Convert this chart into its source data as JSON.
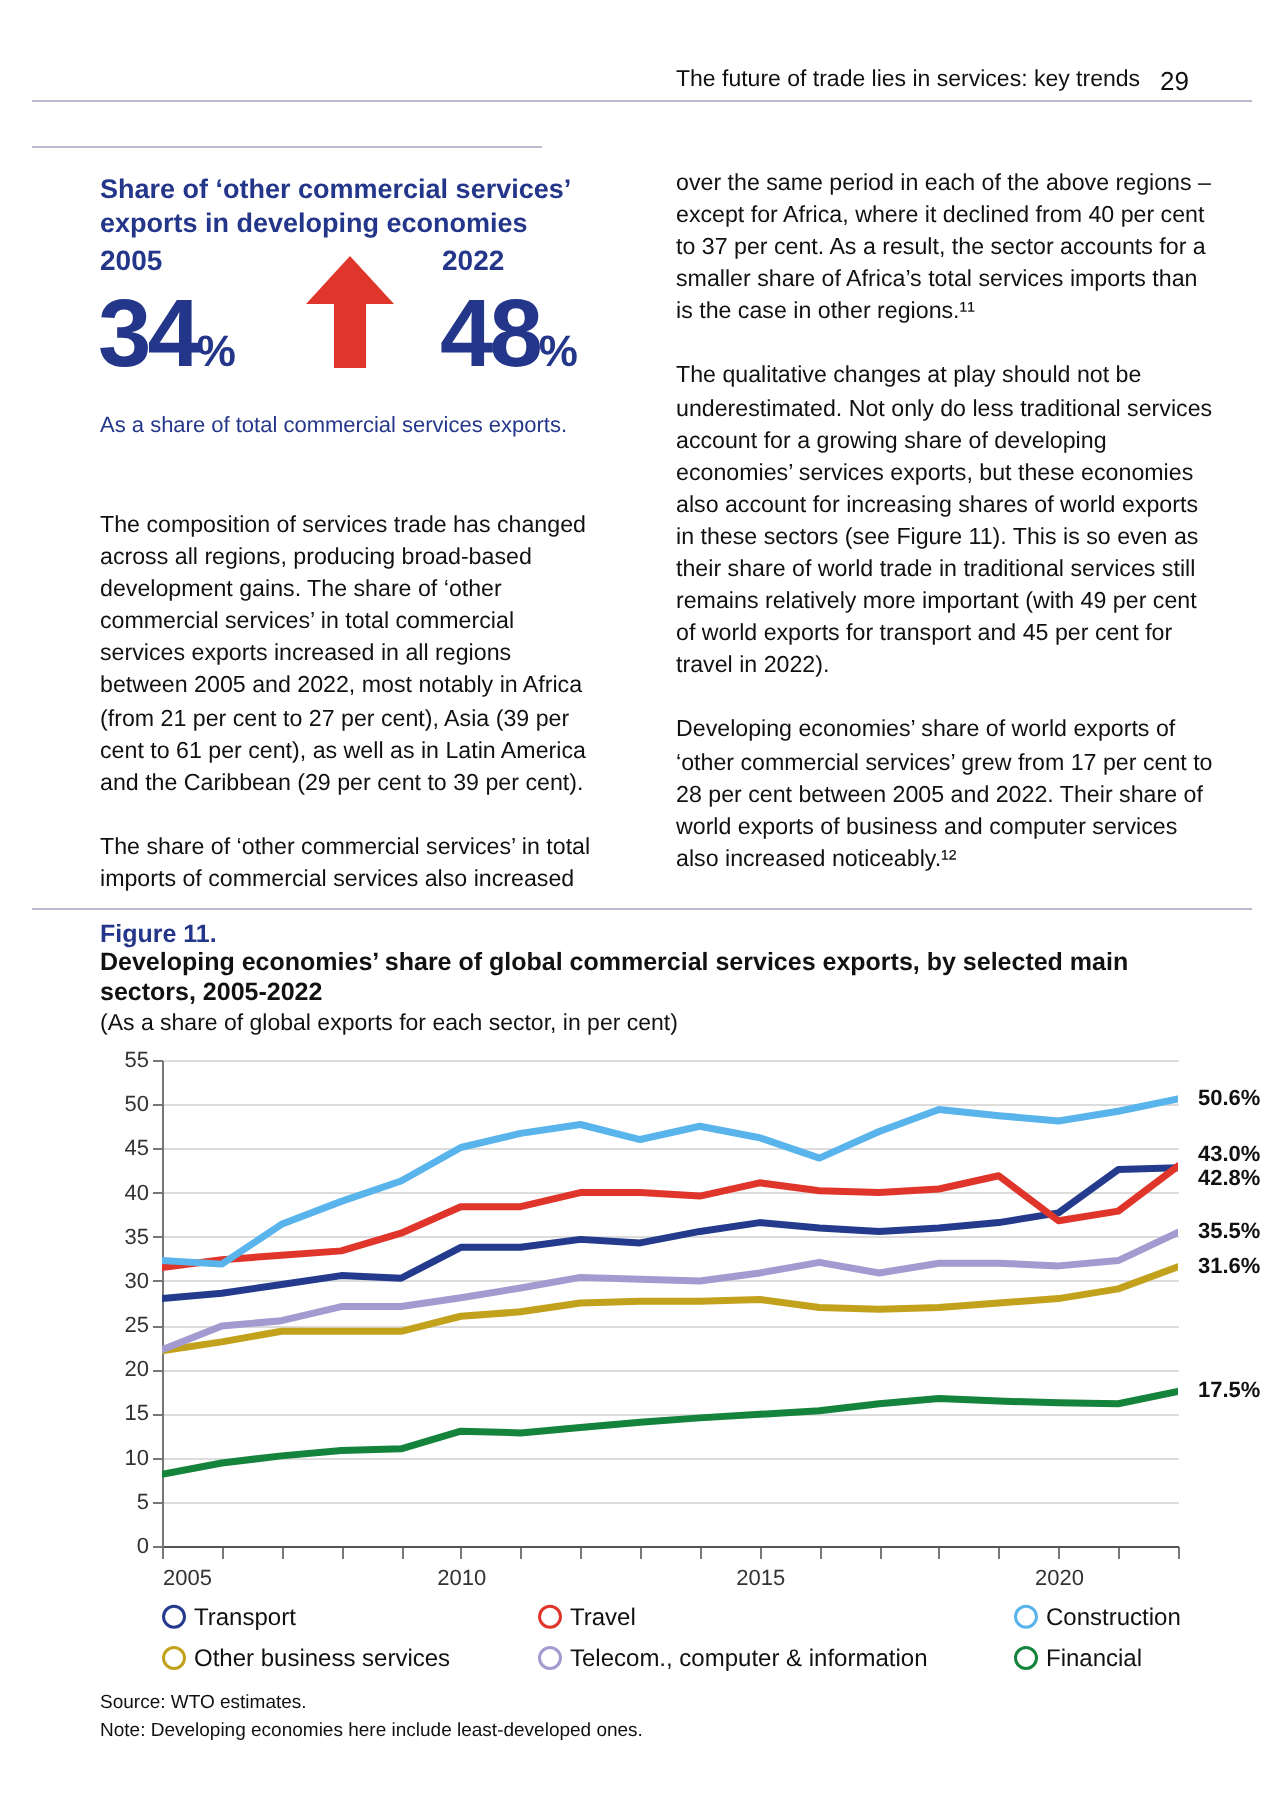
{
  "chart_data": {
    "type": "line",
    "title": "Developing economies’ share of global commercial services exports, by selected main sectors, 2005-2022",
    "subtitle": "(As a share of global exports for each sector, in per cent)",
    "x": [
      2005,
      2006,
      2007,
      2008,
      2009,
      2010,
      2011,
      2012,
      2013,
      2014,
      2015,
      2016,
      2017,
      2018,
      2019,
      2020,
      2021,
      2022
    ],
    "xlim": [
      2005,
      2022
    ],
    "xticks": [
      2005,
      {
        "value": 2006,
        "label": null
      },
      {
        "value": 2007,
        "label": null
      },
      {
        "value": 2008,
        "label": null
      },
      {
        "value": 2009,
        "label": null
      },
      2010,
      {
        "value": 2011,
        "label": null
      },
      {
        "value": 2012,
        "label": null
      },
      {
        "value": 2013,
        "label": null
      },
      {
        "value": 2014,
        "label": null
      },
      2015,
      {
        "value": 2016,
        "label": null
      },
      {
        "value": 2017,
        "label": null
      },
      {
        "value": 2018,
        "label": null
      },
      {
        "value": 2019,
        "label": null
      },
      2020,
      {
        "value": 2021,
        "label": null
      },
      {
        "value": 2022,
        "label": null
      }
    ],
    "ylim": [
      0,
      55
    ],
    "yticks": [
      0,
      5,
      10,
      15,
      20,
      25,
      30,
      35,
      40,
      45,
      50,
      55
    ],
    "grid": "y",
    "legend": "bottom",
    "marker": "none",
    "line_style": "solid",
    "series": [
      {
        "name": "Transport",
        "color": "#243a8c",
        "values": [
          28.0,
          28.6,
          29.6,
          30.6,
          30.3,
          33.8,
          33.8,
          34.7,
          34.3,
          35.6,
          36.6,
          36.0,
          35.6,
          36.0,
          36.6,
          37.7,
          42.6,
          42.8
        ],
        "value_labels": [
          null,
          null,
          null,
          null,
          null,
          null,
          null,
          null,
          null,
          null,
          null,
          null,
          null,
          null,
          null,
          null,
          null,
          "42.8%"
        ]
      },
      {
        "name": "Travel",
        "color": "#e0352b",
        "values": [
          31.5,
          32.4,
          32.9,
          33.4,
          35.4,
          38.4,
          38.4,
          40.0,
          40.0,
          39.6,
          41.1,
          40.2,
          40.0,
          40.4,
          41.9,
          36.8,
          37.9,
          43.0
        ],
        "value_labels": [
          null,
          null,
          null,
          null,
          null,
          null,
          null,
          null,
          null,
          null,
          null,
          null,
          null,
          null,
          null,
          null,
          null,
          "43.0%"
        ]
      },
      {
        "name": "Construction",
        "color": "#5ab4ec",
        "values": [
          32.3,
          31.9,
          36.4,
          39.0,
          41.3,
          45.1,
          46.7,
          47.7,
          46.0,
          47.5,
          46.2,
          43.9,
          46.9,
          49.4,
          48.7,
          48.1,
          49.2,
          50.6
        ],
        "value_labels": [
          null,
          null,
          null,
          null,
          null,
          null,
          null,
          null,
          null,
          null,
          null,
          null,
          null,
          null,
          null,
          null,
          null,
          "50.6%"
        ]
      },
      {
        "name": "Other business services",
        "color": "#c2a21c",
        "values": [
          22.1,
          23.1,
          24.3,
          24.3,
          24.3,
          26.0,
          26.5,
          27.5,
          27.7,
          27.7,
          27.9,
          27.0,
          26.8,
          27.0,
          27.5,
          28.0,
          29.1,
          31.6
        ],
        "value_labels": [
          null,
          null,
          null,
          null,
          null,
          null,
          null,
          null,
          null,
          null,
          null,
          null,
          null,
          null,
          null,
          null,
          null,
          "31.6%"
        ]
      },
      {
        "name": "Telecom., computer & information",
        "color": "#a39ad0",
        "values": [
          22.2,
          24.9,
          25.5,
          27.1,
          27.1,
          28.1,
          29.2,
          30.4,
          30.2,
          30.0,
          30.9,
          32.1,
          30.9,
          32.0,
          32.0,
          31.7,
          32.3,
          35.5
        ],
        "value_labels": [
          null,
          null,
          null,
          null,
          null,
          null,
          null,
          null,
          null,
          null,
          null,
          null,
          null,
          null,
          null,
          null,
          null,
          "35.5%"
        ]
      },
      {
        "name": "Financial",
        "color": "#14833c",
        "values": [
          8.1,
          9.4,
          10.2,
          10.8,
          11.0,
          13.0,
          12.8,
          13.4,
          14.0,
          14.5,
          14.9,
          15.3,
          16.1,
          16.7,
          16.4,
          16.2,
          16.1,
          17.5
        ],
        "value_labels": [
          null,
          null,
          null,
          null,
          null,
          null,
          null,
          null,
          null,
          null,
          null,
          null,
          null,
          null,
          null,
          null,
          null,
          "17.5%"
        ]
      }
    ],
    "annotations": [
      "The future of trade lies in services: key trends",
      "29",
      "Share of ‘other commercial services’ exports in developing economies",
      "2005",
      "34%",
      "2022",
      "48%",
      "As a share of total commercial services exports.",
      "The composition of services trade has changed across all regions, producing broad-based development gains. The share of ‘other commercial services’ in total commercial services exports increased in all regions between 2005 and 2022, most notably in Africa (from 21 per cent to 27 per cent), Asia (39 per cent to 61 per cent), as well as in Latin America and the Caribbean (29 per cent to 39 per cent).",
      "The share of ‘other commercial services’ in total imports of commercial services also increased",
      "over the same period in each of the above regions – except for Africa, where it declined from 40 per cent to 37 per cent. As a result, the sector accounts for a smaller share of Africa’s total services imports than is the case in other regions.¹¹",
      "The qualitative changes at play should not be underestimated. Not only do less traditional services account for a growing share of developing economies’ services exports, but these economies also account for increasing shares of world exports in these sectors (see Figure 11). This is so even as their share of world trade in traditional services still remains relatively more important (with 49 per cent of world exports for transport and 45 per cent for travel in 2022).",
      "Developing economies’ share of world exports of ‘other commercial services’ grew from 17 per cent to 28 per cent between 2005 and 2022. Their share of world exports of business and computer services also increased noticeably.¹²",
      "Figure 11.",
      "Source: WTO estimates.",
      "Note: Developing economies here include least-developed ones."
    ]
  }
}
